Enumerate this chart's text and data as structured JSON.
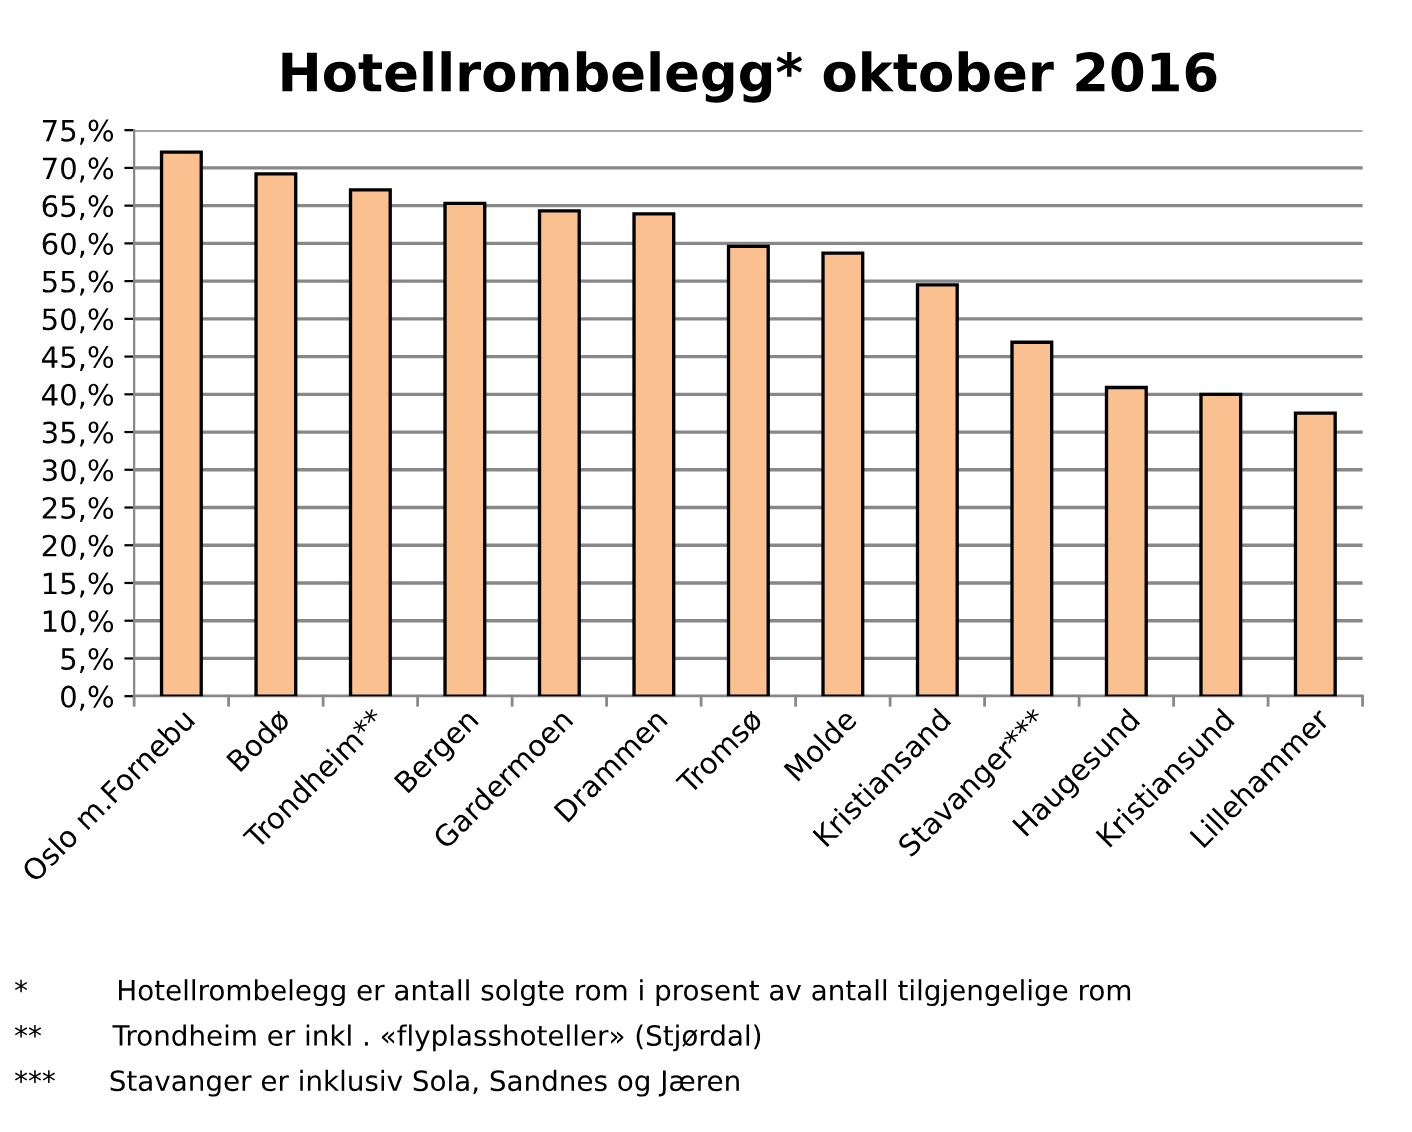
{
  "chart_data": {
    "type": "bar",
    "title": "Hotellrombelegg* oktober 2016",
    "categories": [
      "Oslo m.Fornebu",
      "Bodø",
      "Trondheim**",
      "Bergen",
      "Gardermoen",
      "Drammen",
      "Tromsø",
      "Molde",
      "Kristiansand",
      "Stavanger***",
      "Haugesund",
      "Kristiansund",
      "Lillehammer"
    ],
    "values": [
      72.1,
      69.2,
      67.1,
      65.3,
      64.3,
      63.9,
      59.6,
      58.7,
      54.5,
      46.9,
      40.9,
      40.0,
      37.5
    ],
    "color": "#fac090",
    "ylim": [
      0,
      75
    ],
    "yticks": [
      {
        "value": 0,
        "label": "0,%"
      },
      {
        "value": 5,
        "label": "5,%"
      },
      {
        "value": 10,
        "label": "10,%"
      },
      {
        "value": 15,
        "label": "15,%"
      },
      {
        "value": 20,
        "label": "20,%"
      },
      {
        "value": 25,
        "label": "25,%"
      },
      {
        "value": 30,
        "label": "30,%"
      },
      {
        "value": 35,
        "label": "35,%"
      },
      {
        "value": 40,
        "label": "40,%"
      },
      {
        "value": 45,
        "label": "45,%"
      },
      {
        "value": 50,
        "label": "50,%"
      },
      {
        "value": 55,
        "label": "55,%"
      },
      {
        "value": 60,
        "label": "60,%"
      },
      {
        "value": 65,
        "label": "65,%"
      },
      {
        "value": 70,
        "label": "70,%"
      },
      {
        "value": 75,
        "label": "75,%"
      }
    ],
    "grid": "y",
    "annotations": [
      "*          Hotellrombelegg er antall solgte rom i prosent av antall tilgjengelige rom",
      "**        Trondheim er inkl . «flyplasshoteller» (Stjørdal)",
      "***      Stavanger er inklusiv Sola, Sandnes og Jæren"
    ]
  }
}
